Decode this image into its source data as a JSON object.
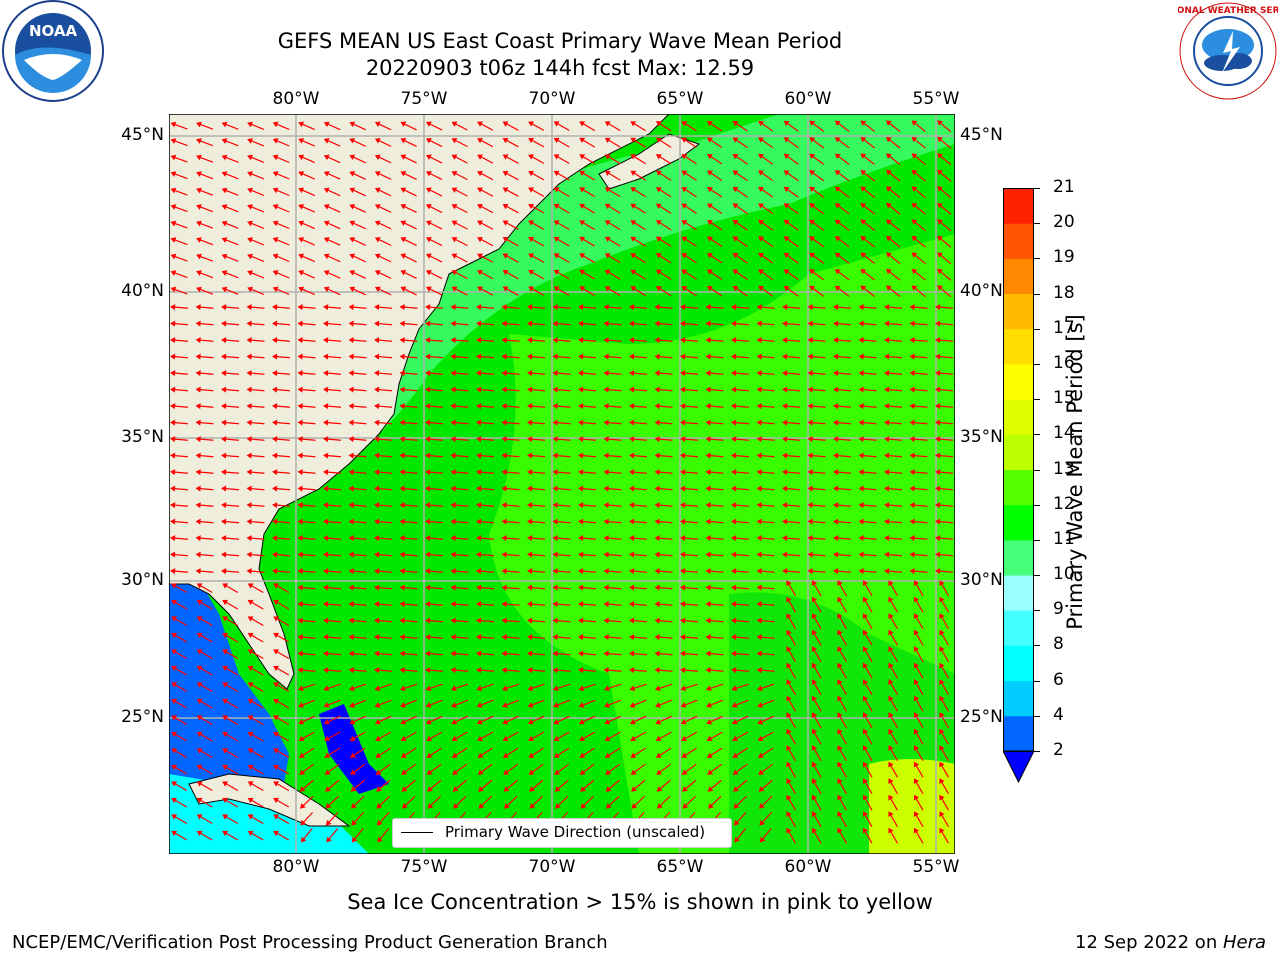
{
  "header": {
    "title_line1": "GEFS MEAN US East Coast Primary Wave Mean Period",
    "title_line2": "20220903 t06z 144h fcst   Max: 12.59"
  },
  "logos": {
    "left": {
      "name": "noaa-logo",
      "text": "NOAA"
    },
    "right": {
      "name": "nws-logo",
      "ring_text": "NATIONAL WEATHER SERVICE"
    }
  },
  "map": {
    "lon_ticks": [
      "80°W",
      "75°W",
      "70°W",
      "65°W",
      "60°W",
      "55°W"
    ],
    "lat_ticks": [
      "45°N",
      "40°N",
      "35°N",
      "30°N",
      "25°N"
    ],
    "legend_label": "Primary Wave Direction (unscaled)",
    "colors": {
      "land": "#efeedd",
      "water_main": "#00e800",
      "arrow": "#ff0000"
    }
  },
  "colorbar": {
    "label": "Primary Wave Mean Period [s]",
    "levels": [
      "2",
      "4",
      "6",
      "8",
      "9",
      "10",
      "11",
      "12",
      "13",
      "14",
      "15",
      "16",
      "17",
      "18",
      "19",
      "20",
      "21"
    ],
    "colors": [
      "#0000ff",
      "#0066ff",
      "#00ccff",
      "#00ffff",
      "#44ffff",
      "#99ffff",
      "#44ff77",
      "#00ff00",
      "#55ff00",
      "#bbff00",
      "#ddff00",
      "#ffff00",
      "#ffdd00",
      "#ffbb00",
      "#ff8800",
      "#ff5500",
      "#ff2200",
      "#ff0000"
    ]
  },
  "footer": {
    "caption": "Sea Ice Concentration > 15% is shown in pink to yellow",
    "credit": "NCEP/EMC/Verification Post Processing Product Generation Branch",
    "date": "12 Sep 2022 on ",
    "machine": "Hera"
  }
}
